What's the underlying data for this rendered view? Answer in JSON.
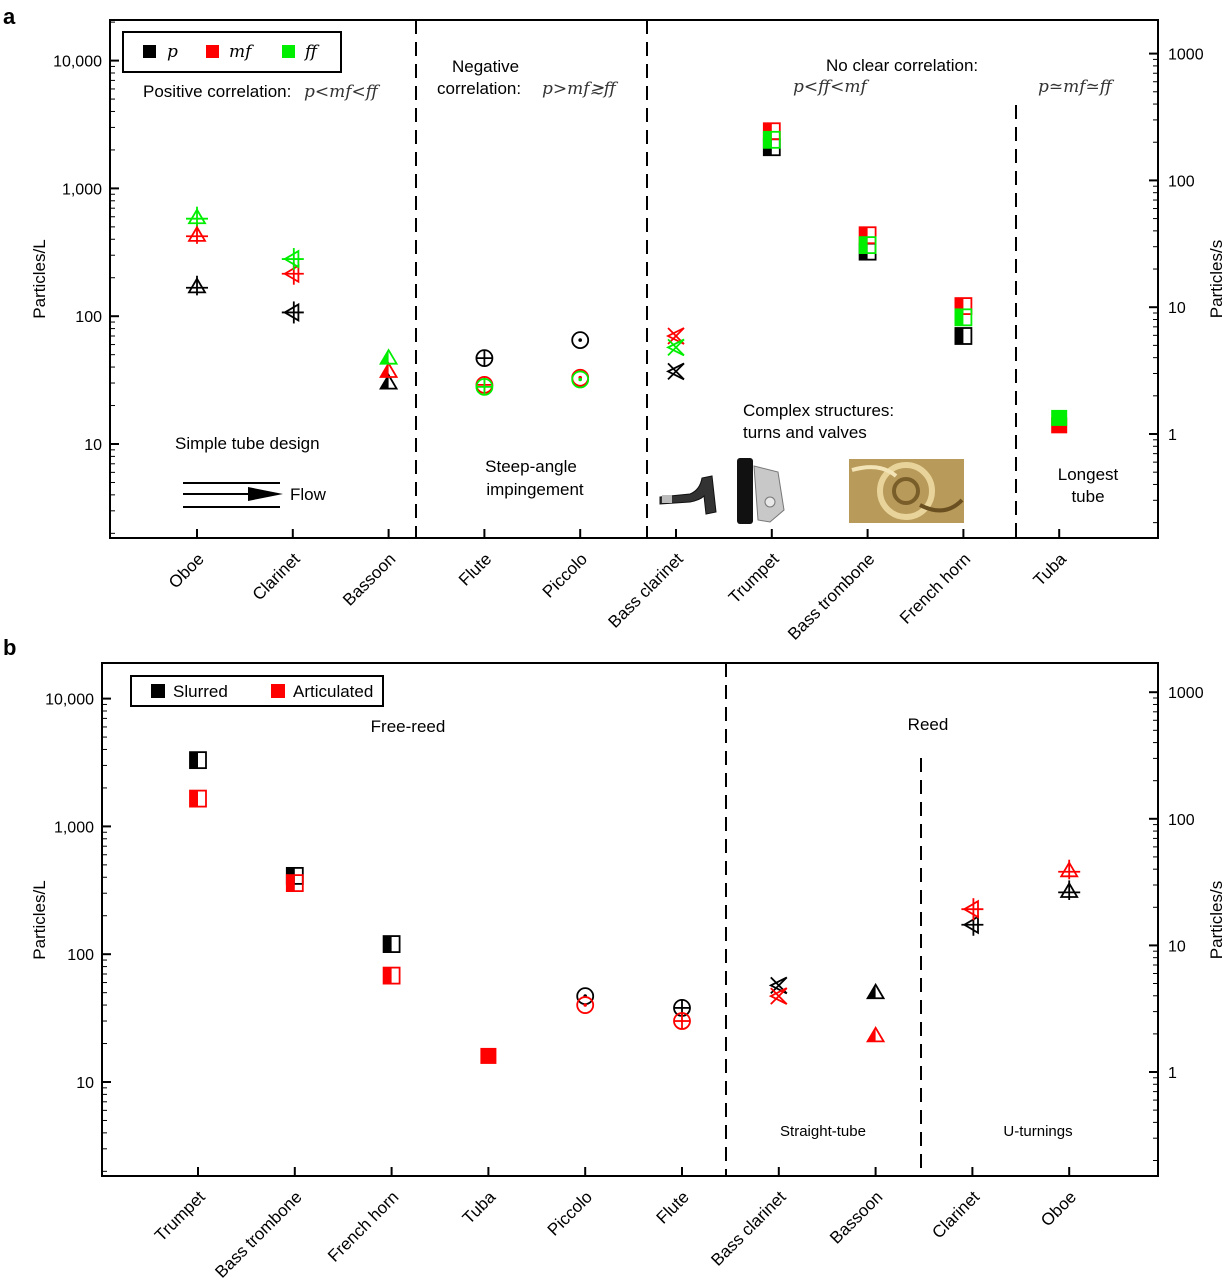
{
  "chart_data": [
    {
      "type": "scatter",
      "panel": "a",
      "ylabel": "Particles/L",
      "y2label": "Particles/s",
      "yscale": "log",
      "ylim": [
        2,
        20000
      ],
      "yticks": [
        {
          "v": 10,
          "t": "10"
        },
        {
          "v": 100,
          "t": "100"
        },
        {
          "v": 1000,
          "t": "1,000"
        },
        {
          "v": 10000,
          "t": "10,000"
        }
      ],
      "y2lim": [
        0.15,
        1500
      ],
      "y2ticks": [
        {
          "v": 1,
          "t": "1"
        },
        {
          "v": 10,
          "t": "10"
        },
        {
          "v": 100,
          "t": "100"
        },
        {
          "v": 1000,
          "t": "1000"
        }
      ],
      "categories": [
        "Oboe",
        "Clarinet",
        "Bassoon",
        "Flute",
        "Piccolo",
        "Bass clarinet",
        "Trumpet",
        "Bass trombone",
        "French horn",
        "Tuba"
      ],
      "legend": {
        "position": "top-left",
        "entries": [
          {
            "label": "p",
            "color": "#000000"
          },
          {
            "label": "mf",
            "color": "#ff0000"
          },
          {
            "label": "ff",
            "color": "#00ee00"
          }
        ]
      },
      "series": [
        {
          "name": "p",
          "color": "#000000",
          "values": [
            170,
            107,
            30,
            47,
            65,
            37,
            2100,
            320,
            70,
            null
          ]
        },
        {
          "name": "mf",
          "color": "#ff0000",
          "values": [
            430,
            215,
            37,
            29,
            33,
            70,
            2800,
            430,
            120,
            14
          ]
        },
        {
          "name": "ff",
          "color": "#00ee00",
          "values": [
            590,
            280,
            47,
            28,
            32,
            57,
            2400,
            360,
            98,
            16
          ]
        }
      ],
      "markers": [
        "triangle-up-cross",
        "triangle-left-cross",
        "triangle-up-half",
        "circle-cross",
        "circle-dot",
        "x-triangle",
        "square-half",
        "square-half",
        "square-half",
        "square"
      ],
      "dividers_after": [
        "Bassoon",
        "Piccolo",
        "French horn"
      ],
      "annotations": [
        "Positive correlation:",
        "p<mf<ff",
        "Negative",
        "correlation:",
        "p>mf≳ff",
        "No clear correlation:",
        "p<ff<mf",
        "p≃mf≃ff",
        "Simple tube design",
        "Flow",
        "Steep-angle",
        "impingement",
        "Complex structures:",
        "turns and valves",
        "Longest",
        "tube"
      ]
    },
    {
      "type": "scatter",
      "panel": "b",
      "ylabel": "Particles/L",
      "y2label": "Particles/s",
      "yscale": "log",
      "ylim": [
        2,
        20000
      ],
      "yticks": [
        {
          "v": 10,
          "t": "10"
        },
        {
          "v": 100,
          "t": "100"
        },
        {
          "v": 1000,
          "t": "1,000"
        },
        {
          "v": 10000,
          "t": "10,000"
        }
      ],
      "y2lim": [
        0.15,
        1500
      ],
      "y2ticks": [
        {
          "v": 1,
          "t": "1"
        },
        {
          "v": 10,
          "t": "10"
        },
        {
          "v": 100,
          "t": "100"
        },
        {
          "v": 1000,
          "t": "1000"
        }
      ],
      "categories": [
        "Trumpet",
        "Bass trombone",
        "French horn",
        "Tuba",
        "Piccolo",
        "Flute",
        "Bass clarinet",
        "Bassoon",
        "Clarinet",
        "Oboe"
      ],
      "legend": {
        "position": "top-left",
        "entries": [
          {
            "label": "Slurred",
            "color": "#000000"
          },
          {
            "label": "Articulated",
            "color": "#ff0000"
          }
        ]
      },
      "series": [
        {
          "name": "Slurred",
          "color": "#000000",
          "values": [
            3300,
            410,
            120,
            null,
            47,
            38,
            57,
            50,
            170,
            310
          ]
        },
        {
          "name": "Articulated",
          "color": "#ff0000",
          "values": [
            1650,
            360,
            68,
            16,
            40,
            30,
            47,
            23,
            225,
            450
          ]
        }
      ],
      "markers": [
        "square-half",
        "square-half",
        "square-half",
        "square",
        "circle-dot",
        "circle-cross",
        "x-triangle",
        "triangle-up-half",
        "triangle-left-cross",
        "triangle-up-cross"
      ],
      "dividers_after": [
        "Flute",
        "Bassoon"
      ],
      "annotations": [
        "Free-reed",
        "Reed",
        "Straight-tube",
        "U-turnings"
      ]
    }
  ],
  "panel_labels": [
    "a",
    "b"
  ]
}
